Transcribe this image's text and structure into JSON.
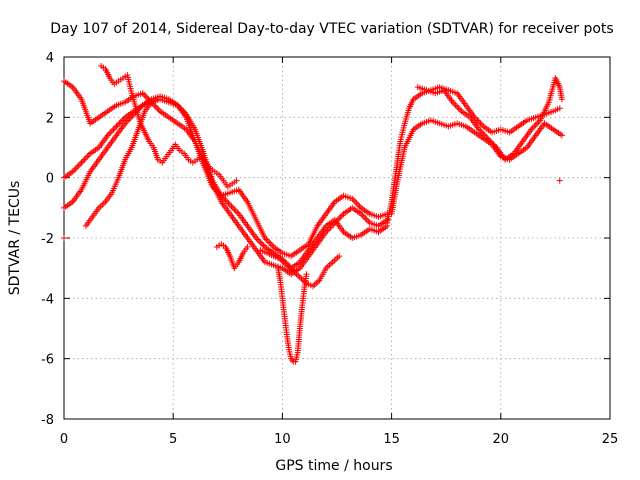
{
  "chart_data": {
    "type": "scatter",
    "title": "Day 107 of 2014, Sidereal Day-to-day VTEC variation (SDTVAR) for receiver pots",
    "xlabel": "GPS time / hours",
    "ylabel": "SDTVAR / TECUs",
    "xlim": [
      0,
      25
    ],
    "ylim": [
      -8,
      4
    ],
    "xticks": [
      "0",
      "5",
      "10",
      "15",
      "20",
      "25"
    ],
    "yticks": [
      "4",
      "2",
      "0",
      "-2",
      "-4",
      "-6",
      "-8"
    ],
    "xtick_values": [
      0,
      5,
      10,
      15,
      20,
      25
    ],
    "ytick_values": [
      4,
      2,
      0,
      -2,
      -4,
      -6,
      -8
    ],
    "grid": true,
    "marker": "+",
    "color": "#ff0000",
    "series": [
      {
        "x": [
          0.0,
          0.4,
          0.8,
          1.2,
          1.6,
          2.0,
          2.4,
          2.8,
          3.2,
          3.6,
          4.0,
          4.4,
          4.8,
          5.2,
          5.6,
          6.0,
          6.4,
          6.8,
          7.2,
          7.6,
          8.0,
          8.4,
          8.8,
          9.2,
          9.6,
          10.0,
          10.4,
          10.8,
          11.2,
          11.6,
          12.0,
          12.4,
          12.8,
          13.2,
          13.6,
          14.0,
          14.4,
          14.8
        ],
        "y": [
          -1.0,
          -0.8,
          -0.4,
          0.2,
          0.6,
          1.0,
          1.4,
          1.8,
          2.1,
          2.4,
          2.6,
          2.7,
          2.6,
          2.4,
          2.1,
          1.6,
          0.8,
          -0.1,
          -0.6,
          -0.9,
          -1.2,
          -1.6,
          -2.0,
          -2.3,
          -2.5,
          -2.7,
          -3.0,
          -2.8,
          -2.4,
          -2.0,
          -1.6,
          -1.4,
          -1.8,
          -2.0,
          -1.9,
          -1.7,
          -1.8,
          -1.6
        ]
      },
      {
        "x": [
          0.0,
          0.4,
          0.8,
          1.2,
          1.6,
          2.0,
          2.4,
          2.8,
          3.2,
          3.6,
          4.0,
          4.4,
          4.8,
          5.2,
          5.6,
          6.0,
          6.4,
          6.8,
          7.2,
          7.6,
          8.0,
          8.4,
          8.8,
          9.2,
          9.6,
          10.0,
          10.4,
          10.8,
          11.2,
          11.6,
          12.0,
          12.4,
          12.8,
          13.2,
          13.6,
          14.0,
          14.4,
          14.8
        ],
        "y": [
          0.0,
          0.2,
          0.5,
          0.8,
          1.0,
          1.4,
          1.7,
          2.0,
          2.2,
          2.4,
          2.5,
          2.6,
          2.5,
          2.4,
          2.0,
          1.2,
          0.4,
          -0.3,
          -0.6,
          -0.5,
          -0.4,
          -0.8,
          -1.4,
          -2.0,
          -2.3,
          -2.5,
          -2.6,
          -2.4,
          -2.2,
          -1.6,
          -1.2,
          -0.8,
          -0.6,
          -0.7,
          -1.0,
          -1.2,
          -1.3,
          -1.2
        ]
      },
      {
        "x": [
          0.0,
          0.4,
          0.8,
          1.2,
          1.6,
          2.0,
          2.4,
          2.8,
          3.2,
          3.6,
          4.0,
          4.4,
          4.8,
          5.2,
          5.6,
          6.0,
          6.4,
          6.8,
          7.2,
          7.6,
          8.0,
          8.4,
          8.8,
          9.2,
          9.6,
          10.0,
          10.4,
          10.8,
          11.2,
          11.6,
          12.0,
          12.4,
          12.8,
          13.2,
          13.6,
          14.0,
          14.4,
          14.8
        ],
        "y": [
          3.2,
          3.0,
          2.6,
          1.8,
          2.0,
          2.2,
          2.4,
          2.5,
          2.7,
          2.8,
          2.5,
          2.2,
          2.0,
          1.8,
          1.6,
          1.2,
          0.6,
          -0.2,
          -0.8,
          -1.2,
          -1.6,
          -2.0,
          -2.4,
          -2.8,
          -2.9,
          -3.0,
          -3.2,
          -3.0,
          -2.6,
          -2.2,
          -1.8,
          -1.5,
          -1.2,
          -1.0,
          -1.2,
          -1.5,
          -1.6,
          -1.4
        ]
      },
      {
        "x": [
          1.7,
          1.9,
          2.1,
          2.3,
          2.5,
          2.7,
          2.9,
          3.1,
          3.3,
          3.5,
          3.7,
          3.9,
          4.1,
          4.3,
          4.5,
          4.7,
          4.9,
          5.1,
          5.3,
          5.5,
          5.7,
          5.9,
          6.1,
          6.3,
          6.5,
          6.7,
          6.9,
          7.1,
          7.3,
          7.5,
          7.7,
          7.9
        ],
        "y": [
          3.7,
          3.6,
          3.3,
          3.1,
          3.2,
          3.3,
          3.4,
          2.8,
          2.3,
          1.8,
          1.5,
          1.2,
          1.0,
          0.6,
          0.5,
          0.7,
          0.9,
          1.1,
          0.9,
          0.8,
          0.6,
          0.5,
          0.6,
          0.7,
          0.5,
          0.3,
          0.2,
          0.1,
          -0.1,
          -0.3,
          -0.2,
          -0.1
        ]
      },
      {
        "x": [
          1.0,
          1.3,
          1.6,
          1.9,
          2.2,
          2.5,
          2.8,
          3.1,
          3.4,
          3.7,
          4.0,
          4.3
        ],
        "y": [
          -1.6,
          -1.3,
          -1.0,
          -0.8,
          -0.5,
          0.0,
          0.6,
          1.0,
          1.6,
          2.2,
          2.5,
          2.6
        ]
      },
      {
        "x": [
          7.0,
          7.2,
          7.4,
          7.6,
          7.8,
          8.0,
          8.2,
          8.4
        ],
        "y": [
          -2.3,
          -2.2,
          -2.3,
          -2.6,
          -3.0,
          -2.8,
          -2.5,
          -2.3
        ]
      },
      {
        "x": [
          9.0,
          9.3,
          9.6,
          9.9,
          10.2,
          10.5,
          10.8,
          11.1,
          11.4,
          11.7,
          12.0,
          12.3,
          12.6
        ],
        "y": [
          -2.4,
          -2.5,
          -2.6,
          -2.7,
          -2.9,
          -3.1,
          -3.3,
          -3.5,
          -3.6,
          -3.4,
          -3.0,
          -2.8,
          -2.6
        ]
      },
      {
        "x": [
          9.8,
          9.9,
          10.0,
          10.1,
          10.2,
          10.3,
          10.4,
          10.5,
          10.6,
          10.7,
          10.8,
          10.9,
          11.0,
          11.1
        ],
        "y": [
          -3.0,
          -3.4,
          -4.0,
          -4.6,
          -5.2,
          -5.7,
          -6.0,
          -6.1,
          -6.1,
          -5.8,
          -5.0,
          -4.3,
          -3.7,
          -3.2
        ]
      },
      {
        "x": [
          14.8,
          15.0,
          15.2,
          15.4,
          15.6,
          15.8,
          16.0,
          16.4,
          16.8,
          17.2,
          17.6,
          18.0,
          18.4,
          18.8,
          19.2,
          19.6,
          20.0,
          20.4,
          20.8,
          21.2,
          21.6,
          22.0,
          22.4,
          22.7
        ],
        "y": [
          -1.5,
          -0.8,
          0.2,
          1.2,
          1.8,
          2.3,
          2.6,
          2.8,
          2.9,
          3.0,
          2.9,
          2.8,
          2.4,
          2.0,
          1.7,
          1.5,
          1.6,
          1.5,
          1.7,
          1.9,
          2.0,
          2.1,
          2.2,
          2.3
        ]
      },
      {
        "x": [
          15.0,
          15.3,
          15.6,
          16.0,
          16.4,
          16.8,
          17.2,
          17.6,
          18.0,
          18.4,
          18.8,
          19.2,
          19.6,
          20.0,
          20.4,
          20.8,
          21.2,
          21.6,
          22.0,
          22.4,
          22.8
        ],
        "y": [
          -1.2,
          0.0,
          1.0,
          1.6,
          1.8,
          1.9,
          1.8,
          1.7,
          1.8,
          1.7,
          1.5,
          1.3,
          1.1,
          0.7,
          0.6,
          0.8,
          1.0,
          1.4,
          1.8,
          1.6,
          1.4
        ]
      },
      {
        "x": [
          16.2,
          16.6,
          17.0,
          17.4,
          17.8,
          18.2,
          18.6,
          19.0,
          19.4,
          19.8,
          20.2,
          20.6,
          21.0,
          21.4,
          21.8,
          22.2,
          22.5,
          22.7,
          22.8
        ],
        "y": [
          3.0,
          2.9,
          2.8,
          2.9,
          2.5,
          2.2,
          2.0,
          1.6,
          1.3,
          1.0,
          0.6,
          0.8,
          1.2,
          1.6,
          1.9,
          2.5,
          3.3,
          3.0,
          2.6
        ]
      },
      {
        "x": [
          0.0,
          22.7
        ],
        "y": [
          -2.0,
          -0.1
        ]
      }
    ]
  }
}
